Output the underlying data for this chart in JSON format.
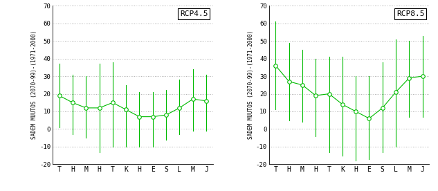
{
  "months": [
    "T",
    "H",
    "M",
    "H",
    "T",
    "K",
    "H",
    "E",
    "S",
    "L",
    "M",
    "J"
  ],
  "rcp45": {
    "label": "RCP4.5",
    "mean": [
      19,
      15,
      12,
      12,
      15,
      11,
      7,
      7,
      8,
      12,
      17,
      16
    ],
    "upper": [
      37,
      31,
      30,
      37,
      38,
      25,
      21,
      21,
      22,
      28,
      34,
      31
    ],
    "lower": [
      1,
      -3,
      -5,
      -13,
      -10,
      -10,
      -10,
      -10,
      -6,
      -3,
      -1,
      -1
    ]
  },
  "rcp85": {
    "label": "RCP8.5",
    "mean": [
      36,
      27,
      25,
      19,
      20,
      14,
      10,
      6,
      12,
      21,
      29,
      30
    ],
    "upper": [
      61,
      49,
      45,
      40,
      41,
      41,
      30,
      30,
      38,
      51,
      50,
      53
    ],
    "lower": [
      11,
      5,
      4,
      -4,
      -13,
      -15,
      -18,
      -17,
      -13,
      -10,
      7,
      7
    ]
  },
  "ylabel": "SADEM MUUTOS (2070-99)-(1971-2000)",
  "ylim": [
    -20,
    70
  ],
  "yticks": [
    -20,
    -10,
    0,
    10,
    20,
    30,
    40,
    50,
    60,
    70
  ],
  "color": "#00BB00",
  "background": "#ffffff",
  "grid_color": "#999999"
}
